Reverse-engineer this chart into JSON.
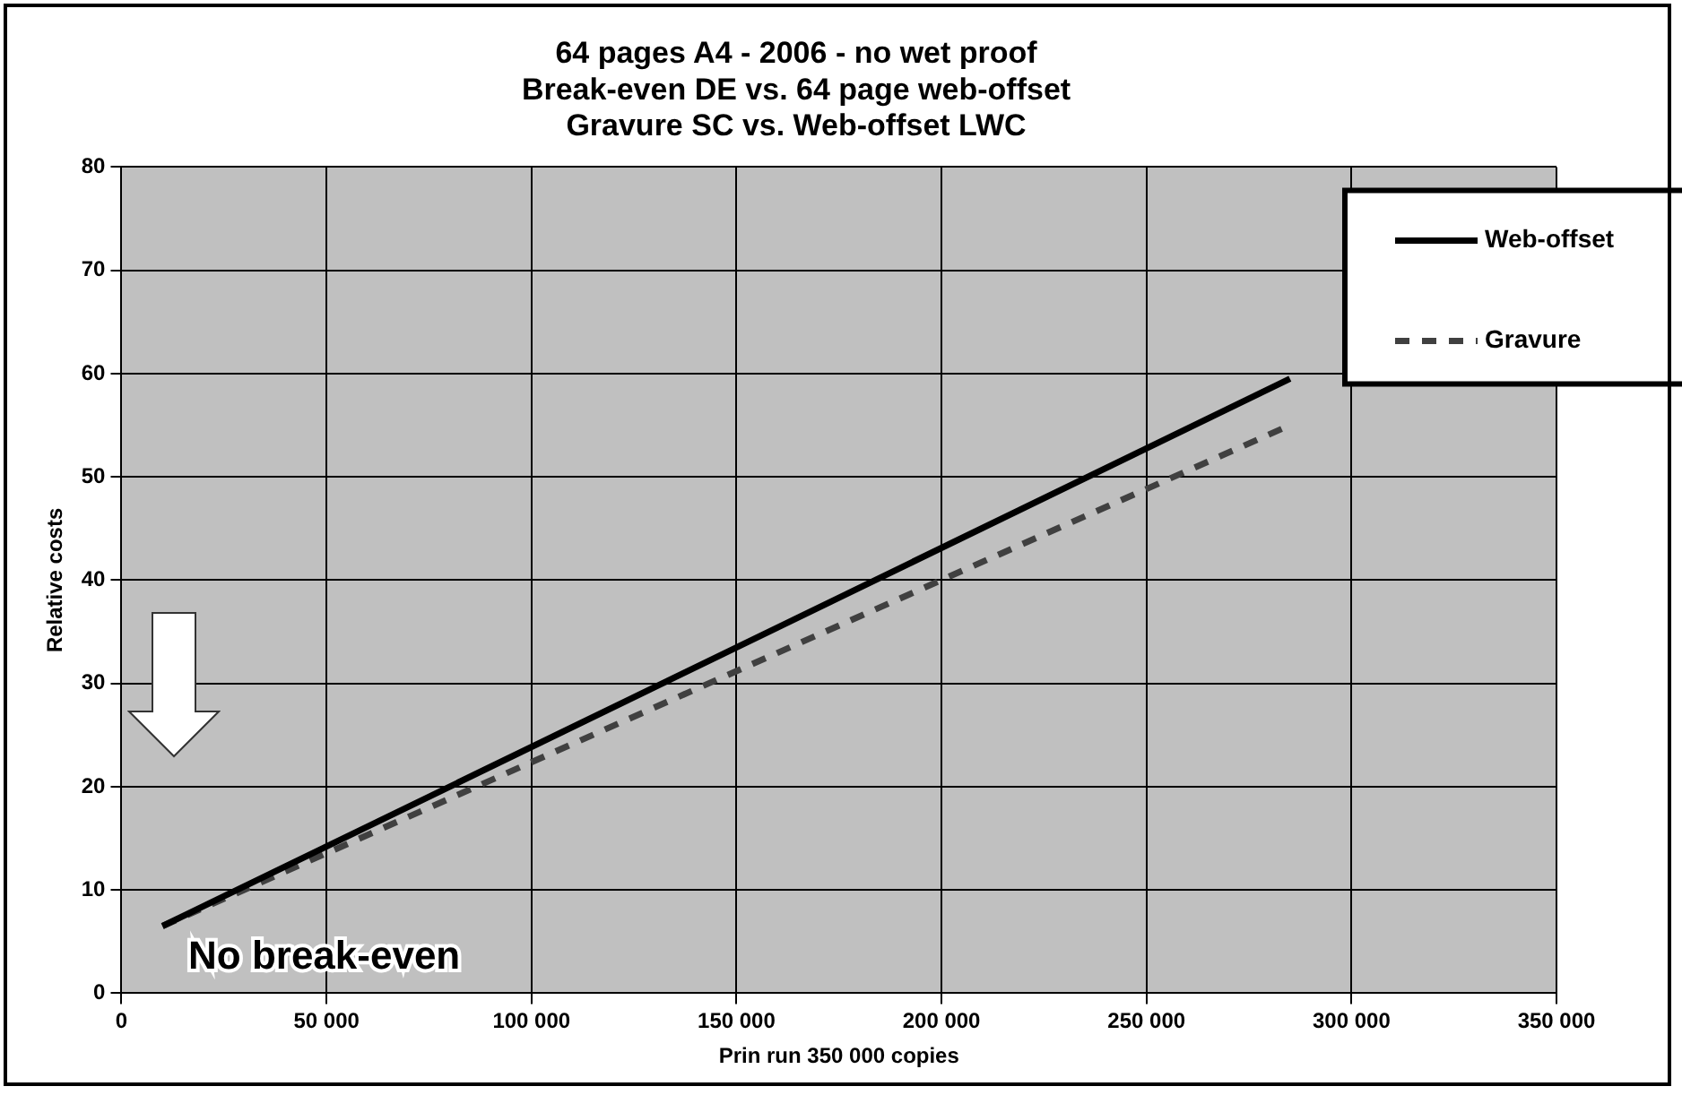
{
  "chart_data": {
    "type": "line",
    "title": "64 pages A4 - 2006 - no wet proof\nBreak-even DE vs. 64 page web-offset\nGravure SC vs. Web-offset LWC",
    "xlabel": "Prin run 350 000 copies",
    "ylabel": "Relative costs",
    "x": [
      10000,
      285000
    ],
    "series": [
      {
        "name": "Web-offset",
        "color": "#000000",
        "values": [
          6.5,
          59.5
        ],
        "line_style": "solid"
      },
      {
        "name": "Gravure",
        "color": "#404040",
        "values": [
          6.5,
          55
        ],
        "line_style": "dashed"
      }
    ],
    "xlim": [
      0,
      350000
    ],
    "xticks": [
      0,
      {
        "value": 50000,
        "label": "50 000"
      },
      {
        "value": 100000,
        "label": "100 000"
      },
      {
        "value": 150000,
        "label": "150 000"
      },
      {
        "value": 200000,
        "label": "200 000"
      },
      {
        "value": 250000,
        "label": "250 000"
      },
      {
        "value": 300000,
        "label": "300 000"
      },
      {
        "value": 350000,
        "label": "350 000"
      }
    ],
    "ylim": [
      0,
      80
    ],
    "yticks": [
      0,
      10,
      20,
      30,
      40,
      50,
      60,
      70,
      80
    ],
    "grid": true,
    "legend": "top right",
    "marker": "none",
    "annotations": [
      "No break-even"
    ]
  }
}
